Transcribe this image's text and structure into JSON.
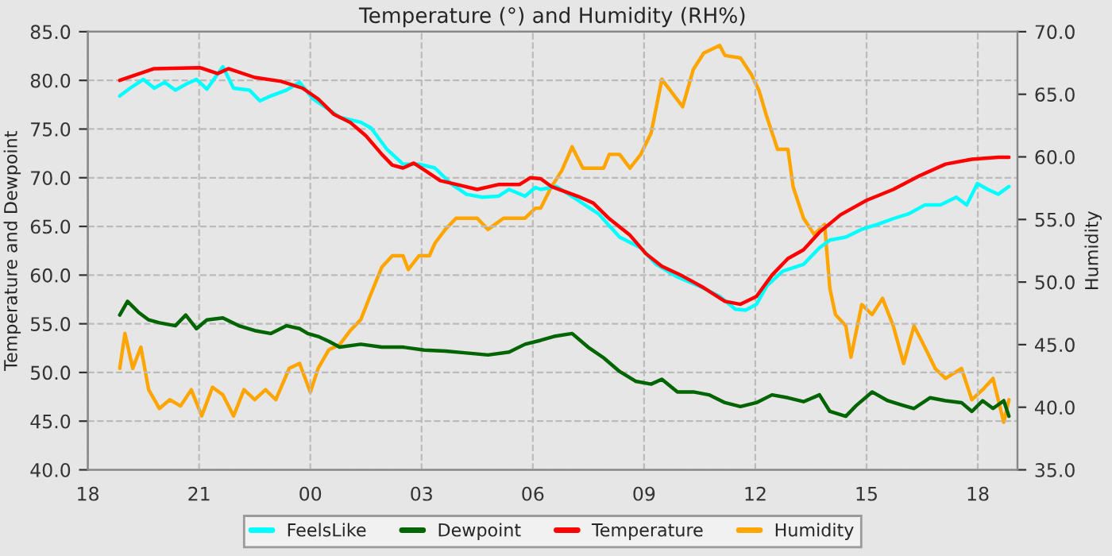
{
  "chart_data": {
    "type": "line",
    "title": "Temperature (°) and Humidity (RH%)",
    "ylabel": "Temperature and Dewpoint",
    "y2label": "Humidity",
    "xlim": [
      18,
      43.07
    ],
    "xticks": [
      {
        "value": 18,
        "label": "18"
      },
      {
        "value": 21,
        "label": "21"
      },
      {
        "value": 24,
        "label": "00"
      },
      {
        "value": 27,
        "label": "03"
      },
      {
        "value": 30,
        "label": "06"
      },
      {
        "value": 33,
        "label": "09"
      },
      {
        "value": 36,
        "label": "12"
      },
      {
        "value": 39,
        "label": "15"
      },
      {
        "value": 42,
        "label": "18"
      }
    ],
    "ylim": [
      40,
      85
    ],
    "yticks": [
      {
        "value": 40,
        "label": "40.0"
      },
      {
        "value": 45,
        "label": "45.0"
      },
      {
        "value": 50,
        "label": "50.0"
      },
      {
        "value": 55,
        "label": "55.0"
      },
      {
        "value": 60,
        "label": "60.0"
      },
      {
        "value": 65,
        "label": "65.0"
      },
      {
        "value": 70,
        "label": "70.0"
      },
      {
        "value": 75,
        "label": "75.0"
      },
      {
        "value": 80,
        "label": "80.0"
      },
      {
        "value": 85,
        "label": "85.0"
      }
    ],
    "y2lim": [
      35,
      70
    ],
    "y2ticks": [
      {
        "value": 35,
        "label": "35.0"
      },
      {
        "value": 40,
        "label": "40.0"
      },
      {
        "value": 45,
        "label": "45.0"
      },
      {
        "value": 50,
        "label": "50.0"
      },
      {
        "value": 55,
        "label": "55.0"
      },
      {
        "value": 60,
        "label": "60.0"
      },
      {
        "value": 65,
        "label": "65.0"
      },
      {
        "value": 70,
        "label": "70.0"
      }
    ],
    "grid": true,
    "legend": "bottom",
    "line_style": "solid",
    "series": [
      {
        "name": "FeelsLike",
        "color": "#00ffff",
        "x": [
          18.86,
          19.14,
          19.5,
          19.79,
          20.07,
          20.36,
          20.64,
          20.93,
          21.21,
          21.64,
          21.93,
          22.36,
          22.64,
          22.93,
          23.36,
          23.71,
          24.07,
          24.5,
          24.79,
          25.36,
          25.64,
          26.07,
          26.5,
          26.93,
          27.36,
          27.79,
          28.21,
          28.64,
          29.07,
          29.36,
          29.79,
          30.07,
          30.21,
          30.64,
          31.21,
          31.77,
          32.34,
          32.91,
          33.33,
          33.9,
          34.47,
          35.04,
          35.46,
          35.74,
          36.03,
          36.31,
          36.74,
          37.3,
          37.73,
          38.01,
          38.44,
          38.87,
          39.29,
          39.72,
          40.14,
          40.57,
          40.99,
          41.42,
          41.7,
          41.99,
          42.27,
          42.55,
          42.84
        ],
        "values": [
          78.4,
          79.2,
          80.1,
          79.2,
          79.8,
          79.0,
          79.6,
          80.1,
          79.1,
          81.4,
          79.2,
          79.0,
          77.9,
          78.4,
          79.0,
          79.8,
          78.1,
          77.0,
          76.2,
          75.7,
          75.1,
          72.9,
          71.4,
          71.4,
          71.0,
          69.4,
          68.3,
          68.0,
          68.1,
          68.8,
          68.1,
          69.0,
          68.8,
          69.1,
          67.7,
          66.3,
          63.9,
          62.8,
          61.1,
          59.8,
          58.9,
          57.8,
          56.5,
          56.4,
          57.0,
          58.9,
          60.4,
          61.1,
          62.8,
          63.6,
          63.9,
          64.7,
          65.2,
          65.8,
          66.3,
          67.2,
          67.2,
          68.0,
          67.2,
          69.4,
          68.8,
          68.3,
          69.1
        ]
      },
      {
        "name": "Dewpoint",
        "color": "#006400",
        "x": [
          18.86,
          19.07,
          19.36,
          19.64,
          19.93,
          20.36,
          20.64,
          20.93,
          21.21,
          21.64,
          22.07,
          22.5,
          22.93,
          23.36,
          23.71,
          23.93,
          24.21,
          24.5,
          24.79,
          25.36,
          25.93,
          26.5,
          27.07,
          27.64,
          28.21,
          28.79,
          29.36,
          29.79,
          30.21,
          30.57,
          31.06,
          31.49,
          31.91,
          32.34,
          32.77,
          33.19,
          33.48,
          33.9,
          34.33,
          34.75,
          35.18,
          35.6,
          36.03,
          36.45,
          36.88,
          37.3,
          37.73,
          38.01,
          38.44,
          38.72,
          39.15,
          39.57,
          40.0,
          40.28,
          40.71,
          41.13,
          41.56,
          41.84,
          42.13,
          42.41,
          42.7,
          42.84
        ],
        "values": [
          55.9,
          57.3,
          56.2,
          55.4,
          55.1,
          54.8,
          55.9,
          54.5,
          55.4,
          55.6,
          54.8,
          54.3,
          54.0,
          54.8,
          54.5,
          54.0,
          53.7,
          53.2,
          52.6,
          52.9,
          52.6,
          52.6,
          52.3,
          52.2,
          52.0,
          51.8,
          52.1,
          52.9,
          53.3,
          53.7,
          54.0,
          52.6,
          51.5,
          50.1,
          49.1,
          48.8,
          49.3,
          48.0,
          48.0,
          47.7,
          46.9,
          46.5,
          46.9,
          47.7,
          47.4,
          47.0,
          47.7,
          46.0,
          45.5,
          46.6,
          48.0,
          47.1,
          46.6,
          46.3,
          47.4,
          47.1,
          46.9,
          46.0,
          47.1,
          46.3,
          47.1,
          45.5
        ]
      },
      {
        "name": "Temperature",
        "color": "#ff0000",
        "x": [
          18.86,
          19.79,
          21.03,
          21.5,
          21.79,
          22.5,
          23.21,
          23.79,
          24.21,
          24.64,
          25.07,
          25.5,
          25.93,
          26.21,
          26.5,
          26.79,
          27.07,
          27.5,
          28.07,
          28.5,
          29.07,
          29.64,
          29.93,
          30.21,
          30.5,
          31.21,
          31.63,
          32.06,
          32.62,
          33.05,
          33.48,
          34.04,
          34.61,
          35.18,
          35.6,
          36.03,
          36.45,
          36.88,
          37.3,
          37.73,
          38.3,
          39.01,
          39.72,
          40.43,
          41.13,
          41.84,
          42.55,
          42.84
        ],
        "values": [
          80.0,
          81.2,
          81.3,
          80.7,
          81.2,
          80.3,
          79.9,
          79.2,
          78.1,
          76.5,
          75.7,
          74.3,
          72.4,
          71.3,
          71.0,
          71.5,
          70.8,
          69.7,
          69.2,
          68.8,
          69.3,
          69.3,
          70.0,
          69.9,
          69.1,
          68.1,
          67.4,
          65.8,
          64.1,
          62.2,
          60.9,
          59.9,
          58.7,
          57.3,
          57.0,
          57.8,
          60.0,
          61.7,
          62.6,
          64.4,
          66.2,
          67.7,
          68.8,
          70.2,
          71.4,
          71.9,
          72.1,
          72.1
        ]
      },
      {
        "name": "Humidity",
        "color": "#ffa500",
        "axis": "y2",
        "x": [
          18.86,
          19.0,
          19.21,
          19.43,
          19.64,
          19.93,
          20.21,
          20.5,
          20.79,
          21.07,
          21.36,
          21.64,
          21.93,
          22.21,
          22.5,
          22.79,
          23.07,
          23.43,
          23.71,
          24.0,
          24.21,
          24.5,
          24.79,
          25.07,
          25.36,
          25.64,
          25.93,
          26.21,
          26.5,
          26.64,
          26.93,
          27.21,
          27.36,
          27.64,
          27.93,
          28.5,
          28.79,
          29.21,
          29.79,
          30.07,
          30.21,
          30.5,
          30.78,
          31.06,
          31.35,
          31.91,
          32.06,
          32.34,
          32.62,
          32.91,
          33.19,
          33.48,
          33.76,
          34.04,
          34.33,
          34.61,
          35.04,
          35.18,
          35.6,
          35.89,
          36.1,
          36.31,
          36.6,
          36.88,
          37.02,
          37.3,
          37.59,
          37.87,
          38.01,
          38.16,
          38.44,
          38.58,
          38.87,
          39.15,
          39.43,
          39.72,
          40.0,
          40.28,
          40.57,
          40.85,
          41.13,
          41.56,
          41.84,
          42.13,
          42.41,
          42.7,
          42.84
        ],
        "values": [
          43.1,
          45.9,
          43.1,
          44.8,
          41.4,
          39.9,
          40.6,
          40.1,
          41.4,
          39.3,
          41.6,
          41.0,
          39.3,
          41.4,
          40.6,
          41.4,
          40.6,
          43.1,
          43.5,
          41.2,
          43.1,
          44.6,
          45.0,
          46.1,
          47.0,
          49.1,
          51.2,
          52.1,
          52.1,
          51.0,
          52.1,
          52.1,
          53.1,
          54.2,
          55.1,
          55.1,
          54.2,
          55.1,
          55.1,
          55.9,
          55.9,
          57.6,
          58.9,
          60.8,
          59.1,
          59.1,
          60.2,
          60.2,
          59.1,
          60.2,
          61.9,
          66.2,
          65.1,
          64.0,
          67.0,
          68.3,
          68.9,
          68.1,
          67.9,
          66.6,
          65.3,
          63.2,
          60.6,
          60.6,
          57.6,
          55.1,
          53.8,
          54.6,
          49.5,
          47.4,
          46.5,
          44.0,
          48.2,
          47.4,
          48.7,
          46.5,
          43.5,
          46.5,
          44.8,
          43.1,
          42.3,
          43.1,
          40.6,
          41.4,
          42.3,
          38.8,
          40.6
        ]
      }
    ]
  }
}
